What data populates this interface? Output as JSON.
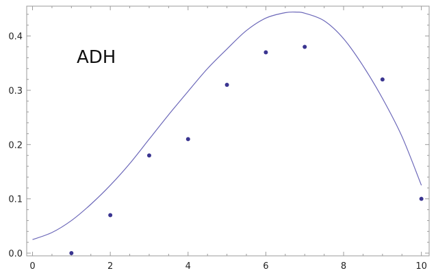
{
  "chart_data": {
    "type": "scatter",
    "title": "",
    "xlabel": "",
    "ylabel": "",
    "xlim": [
      -0.15,
      10.2
    ],
    "ylim": [
      -0.005,
      0.455
    ],
    "grid": false,
    "annotation": "ADH",
    "x_ticks": [
      0,
      2,
      4,
      6,
      8,
      10
    ],
    "y_ticks": [
      0.0,
      0.1,
      0.2,
      0.3,
      0.4
    ],
    "x_tick_labels": [
      "0",
      "2",
      "4",
      "6",
      "8",
      "10"
    ],
    "y_tick_labels": [
      "0.0",
      "0.1",
      "0.2",
      "0.3",
      "0.4"
    ],
    "series": [
      {
        "type": "scatter",
        "x": [
          1,
          2,
          3,
          4,
          5,
          6,
          7,
          9,
          10
        ],
        "y": [
          0.0,
          0.07,
          0.18,
          0.21,
          0.31,
          0.37,
          0.38,
          0.32,
          0.1
        ]
      },
      {
        "type": "line",
        "x": [
          0,
          0.5,
          1,
          1.5,
          2,
          2.5,
          3,
          3.5,
          4,
          4.5,
          5,
          5.5,
          6,
          6.5,
          6.8,
          7,
          7.5,
          8,
          8.5,
          9,
          9.5,
          10
        ],
        "y": [
          0.025,
          0.038,
          0.06,
          0.09,
          0.125,
          0.165,
          0.21,
          0.255,
          0.298,
          0.34,
          0.376,
          0.41,
          0.433,
          0.443,
          0.444,
          0.442,
          0.428,
          0.395,
          0.345,
          0.285,
          0.215,
          0.125
        ]
      }
    ],
    "colors": {
      "points": "#3a3590",
      "curve": "#6a66b8",
      "frame": "#9a9a9a"
    }
  }
}
